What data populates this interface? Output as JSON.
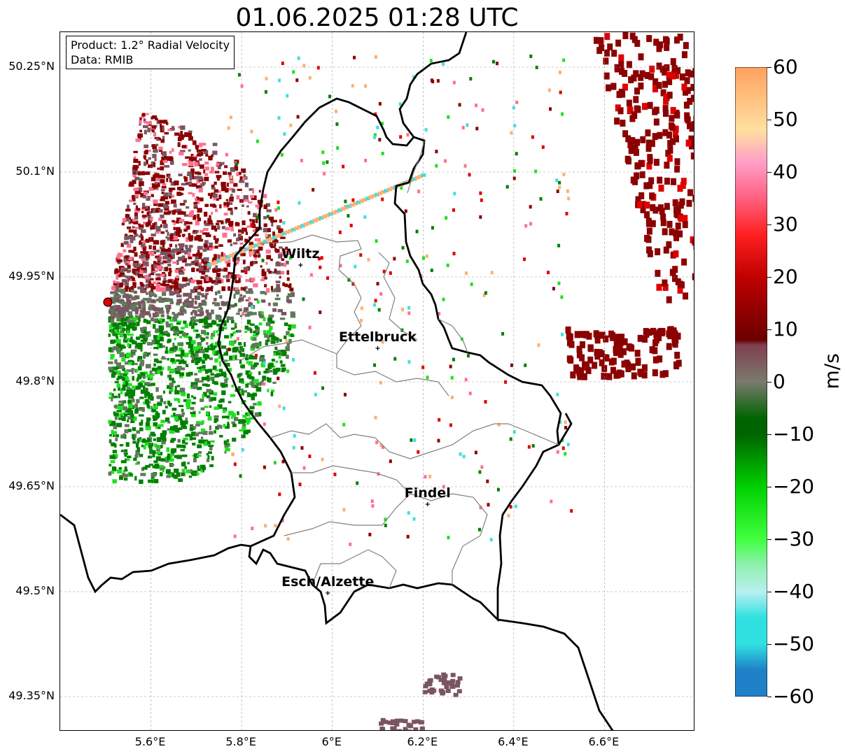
{
  "title": "01.06.2025 01:28 UTC",
  "info": {
    "product": "Product: 1.2° Radial Velocity",
    "data": "Data: RMIB"
  },
  "axes": {
    "lon_range": [
      5.4,
      6.8
    ],
    "lat_range": [
      49.3,
      50.3
    ],
    "x_ticks": [
      "5.6°E",
      "5.8°E",
      "6°E",
      "6.2°E",
      "6.4°E",
      "6.6°E"
    ],
    "x_tick_values": [
      5.6,
      5.8,
      6.0,
      6.2,
      6.4,
      6.6
    ],
    "y_ticks": [
      "50.25°N",
      "50.1°N",
      "49.95°N",
      "49.8°N",
      "49.65°N",
      "49.5°N",
      "49.35°N"
    ],
    "y_tick_values": [
      50.25,
      50.1,
      49.95,
      49.8,
      49.65,
      49.5,
      49.35
    ],
    "grid": true
  },
  "cities": [
    {
      "name": "Wiltz",
      "lon": 5.93,
      "lat": 49.967
    },
    {
      "name": "Ettelbruck",
      "lon": 6.1,
      "lat": 49.848
    },
    {
      "name": "Findel",
      "lon": 6.21,
      "lat": 49.625
    },
    {
      "name": "Esch/Alzette",
      "lon": 5.99,
      "lat": 49.498
    }
  ],
  "radar": {
    "lon": 5.505,
    "lat": 49.914
  },
  "colorbar": {
    "unit": "m/s",
    "min": -60,
    "max": 60,
    "ticks": [
      "60",
      "50",
      "40",
      "30",
      "20",
      "10",
      "0",
      "−10",
      "−20",
      "−30",
      "−40",
      "−50",
      "−60"
    ],
    "tick_values": [
      60,
      50,
      40,
      30,
      20,
      10,
      0,
      -10,
      -20,
      -30,
      -40,
      -50,
      -60
    ],
    "colors": {
      "neg_60": "#2080c8",
      "neg_50": "#30e0e0",
      "neg_40": "#b8f0f0",
      "neg_35": "#90f0b0",
      "neg_30": "#40ff40",
      "neg_20": "#00d000",
      "neg_10": "#006400",
      "zero": "#7a7a6e",
      "pos_8": "#804050",
      "pos_10": "#6a0000",
      "pos_20": "#c00000",
      "pos_28": "#ff2020",
      "pos_35": "#ff6080",
      "pos_42": "#ffa0c8",
      "pos_48": "#ffe0a0",
      "pos_60": "#ffa060"
    }
  },
  "echoes": {
    "colors": {
      "dark_red": "#8b0000",
      "grey_mauve": "#7a5560",
      "grey_green": "#5f7a5a",
      "green": "#008000",
      "light_green": "#20e020",
      "cyan": "#40e0e0",
      "orange": "#ffb070",
      "pink": "#ff7090",
      "red": "#e00000"
    }
  }
}
